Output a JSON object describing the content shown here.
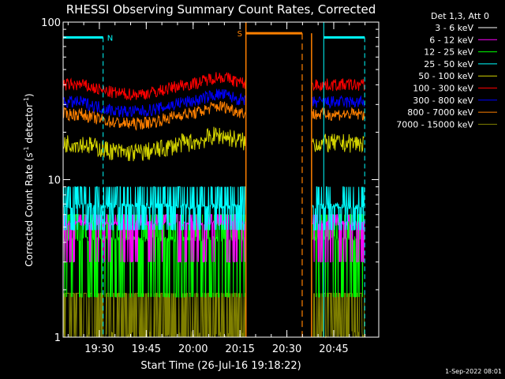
{
  "chart_data": {
    "type": "line",
    "title": "RHESSI Observing Summary Count Rates, Corrected",
    "ylabel_main": "Corrected Count Rate (s",
    "ylabel_sup": "-1",
    "ylabel_mid": " detector",
    "ylabel_sup2": "-1",
    "ylabel_end": ")",
    "xlabel": "Start Time (26-Jul-16 19:18:22)",
    "y_scale": "log",
    "ylim": [
      1,
      100
    ],
    "y_ticks": [
      "1",
      "10",
      "100"
    ],
    "xlim_minutes": [
      0,
      101
    ],
    "x_ticks": [
      {
        "label": "19:30",
        "min": 11.6
      },
      {
        "label": "19:45",
        "min": 26.6
      },
      {
        "label": "20:00",
        "min": 41.6
      },
      {
        "label": "20:15",
        "min": 56.6
      },
      {
        "label": "20:30",
        "min": 71.6
      },
      {
        "label": "20:45",
        "min": 86.6
      }
    ],
    "legend_header": "Det 1,3, Att 0",
    "series": [
      {
        "name": "3 - 6 keV",
        "color": "#000000"
      },
      {
        "name": "6 - 12 keV",
        "color": "#ff00ff"
      },
      {
        "name": "12 - 25 keV",
        "color": "#00ff00"
      },
      {
        "name": "25 - 50 keV",
        "color": "#00ffff"
      },
      {
        "name": "50 - 100 keV",
        "color": "#d4d400"
      },
      {
        "name": "100 - 300 keV",
        "color": "#ff0000"
      },
      {
        "name": "300 - 800 keV",
        "color": "#0000ff"
      },
      {
        "name": "800 - 7000 keV",
        "color": "#ff8000"
      },
      {
        "name": "7000 - 15000 keV",
        "color": "#808000"
      }
    ],
    "data_gap_minutes": [
      58.5,
      79.5
    ],
    "flag_N": {
      "label": "N",
      "start_min": 0,
      "end_min": 12.8,
      "level": 80,
      "color": "#00ffff"
    },
    "flag_N2": {
      "label": "",
      "start_min": 83.4,
      "end_min": 96.5,
      "level": 80,
      "color": "#00ffff"
    },
    "flag_S": {
      "label": "S",
      "start_min": 58.5,
      "end_min": 76.5,
      "level": 85,
      "color": "#ff8000"
    },
    "band_levels": {
      "red": 40,
      "blue": 31,
      "orange": 26,
      "yellow": 17,
      "cyan": 6.8,
      "magenta": 5.3,
      "green": 4.2,
      "olive": 1.6
    },
    "footer_date": "1-Sep-2022 08:01"
  }
}
